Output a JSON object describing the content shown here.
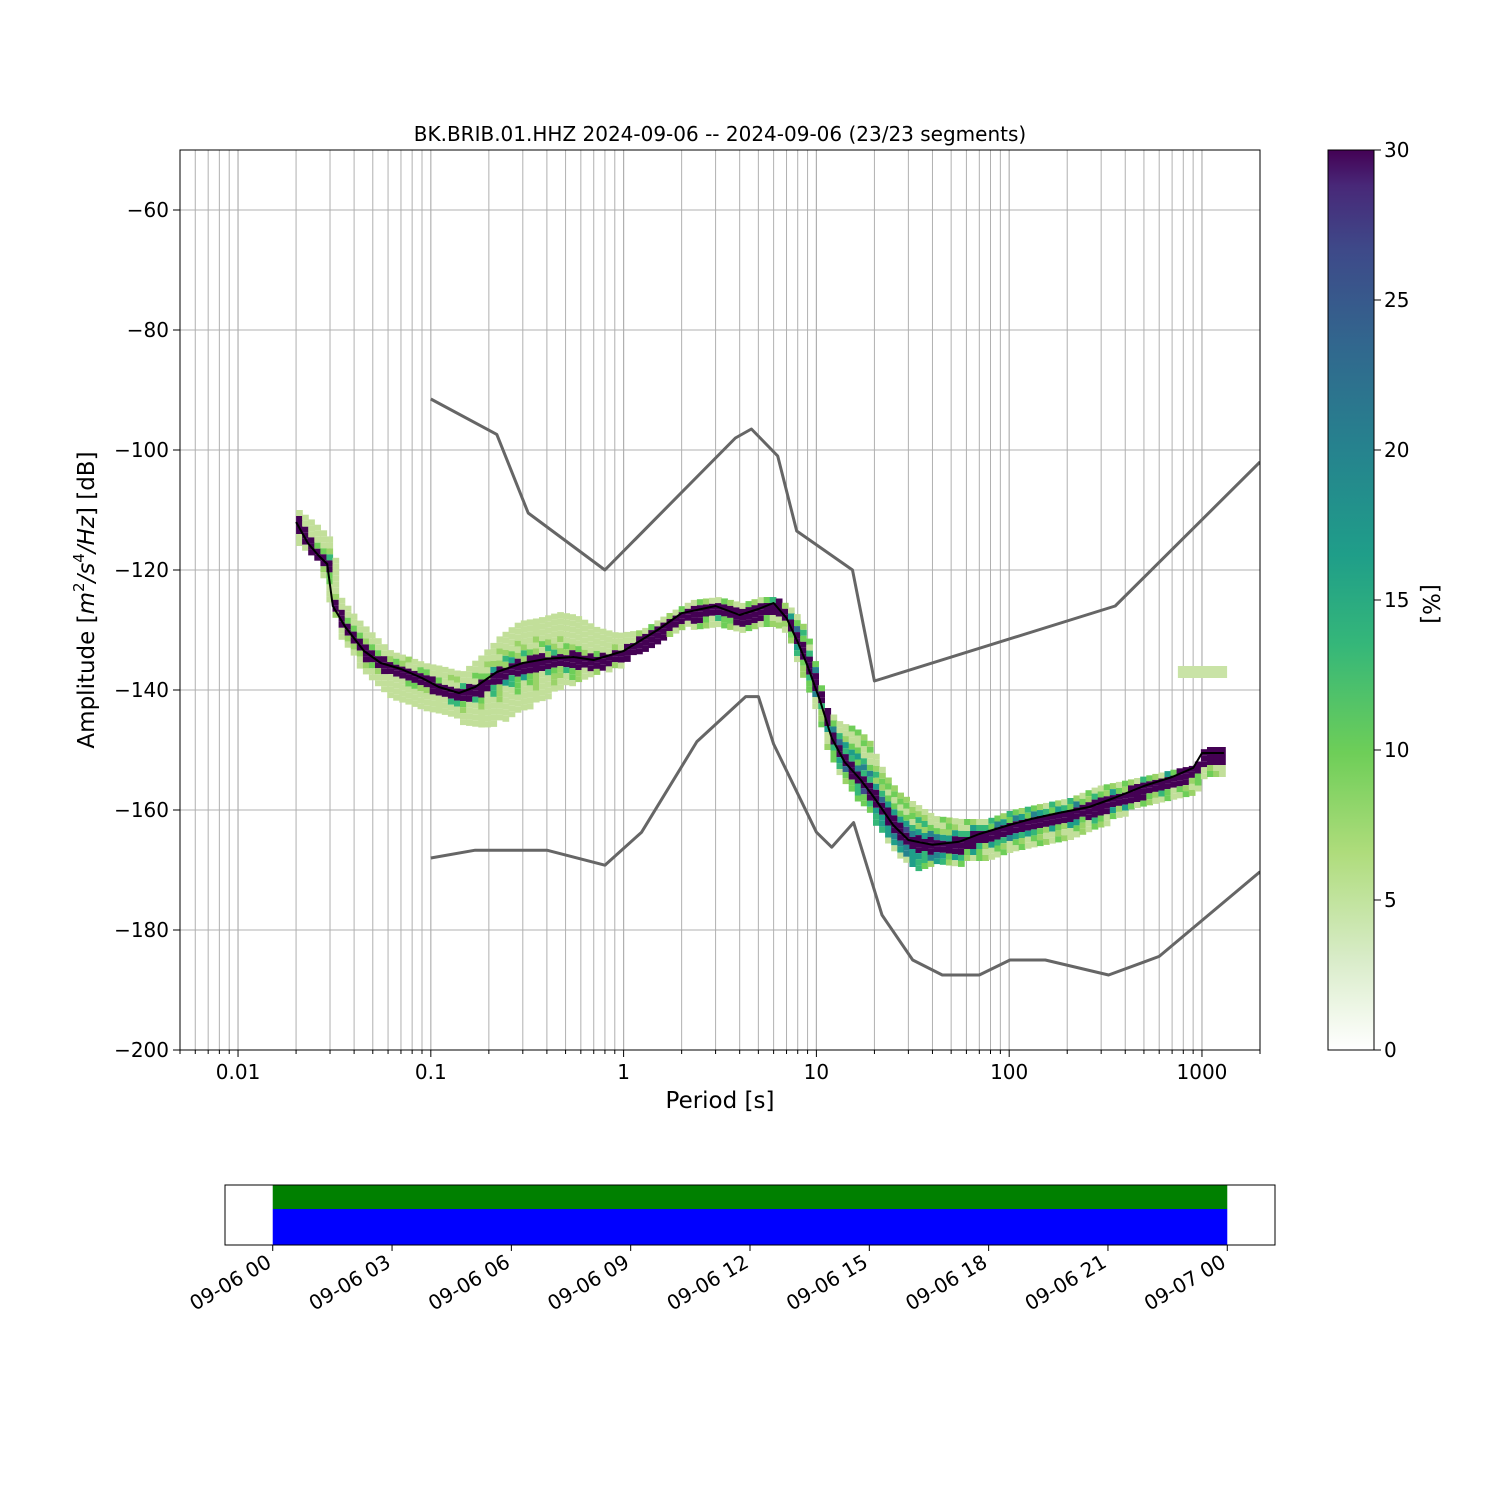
{
  "chart_data": [
    {
      "type": "heatmap",
      "title": "BK.BRIB.01.HHZ   2024-09-06 -- 2024-09-06  (23/23 segments)",
      "xlabel": "Period [s]",
      "ylabel_parts": {
        "prefix": "Amplitude [",
        "m": "m",
        "two": "2",
        "slash": "/",
        "s": "s",
        "four": "4",
        "hz": "/Hz",
        "suffix": "] [dB]"
      },
      "xscale": "log",
      "xlim": [
        0.005,
        2000
      ],
      "ylim": [
        -200,
        -50
      ],
      "x_tick_labels": [
        {
          "value": 0.01,
          "label": "0.01"
        },
        {
          "value": 0.1,
          "label": "0.1"
        },
        {
          "value": 1,
          "label": "1"
        },
        {
          "value": 10,
          "label": "10"
        },
        {
          "value": 100,
          "label": "100"
        },
        {
          "value": 1000,
          "label": "1000"
        }
      ],
      "y_ticks": [
        -60,
        -80,
        -100,
        -120,
        -140,
        -160,
        -180,
        -200
      ],
      "y_tick_labels": [
        "−60",
        "−80",
        "−100",
        "−120",
        "−140",
        "−160",
        "−180",
        "−200"
      ],
      "grid": true,
      "colorbar": {
        "label": "[%]",
        "range": [
          0,
          30
        ],
        "ticks": [
          0,
          5,
          10,
          15,
          20,
          25,
          30
        ],
        "tick_labels": [
          "0",
          "5",
          "10",
          "15",
          "20",
          "25",
          "30"
        ],
        "colormap": "viridis_r"
      },
      "series": [
        {
          "kind": "noise-model",
          "color": "#666666",
          "points": [
            [
              0.1,
              -91.5
            ],
            [
              0.22,
              -97.4
            ],
            [
              0.32,
              -110.5
            ],
            [
              0.8,
              -120
            ],
            [
              3.8,
              -98
            ],
            [
              4.6,
              -96.5
            ],
            [
              6.3,
              -101
            ],
            [
              7.9,
              -113.5
            ],
            [
              15.4,
              -120
            ],
            [
              20,
              -138.5
            ],
            [
              354.8,
              -126
            ],
            [
              2000,
              -102
            ]
          ]
        },
        {
          "kind": "noise-model",
          "color": "#666666",
          "points": [
            [
              0.1,
              -168
            ],
            [
              0.17,
              -166.7
            ],
            [
              0.4,
              -166.7
            ],
            [
              0.8,
              -169.2
            ],
            [
              1.24,
              -163.7
            ],
            [
              2.4,
              -148.6
            ],
            [
              4.3,
              -141.1
            ],
            [
              5.0,
              -141.1
            ],
            [
              6.0,
              -149
            ],
            [
              10.0,
              -163.7
            ],
            [
              12.0,
              -166.2
            ],
            [
              15.6,
              -162.1
            ],
            [
              21.9,
              -177.5
            ],
            [
              31.6,
              -185
            ],
            [
              45,
              -187.5
            ],
            [
              70,
              -187.5
            ],
            [
              101,
              -185
            ],
            [
              154,
              -185
            ],
            [
              328,
              -187.5
            ],
            [
              600,
              -184.4
            ],
            [
              2000,
              -170.3
            ]
          ]
        },
        {
          "kind": "mean",
          "color": "#000000",
          "points": [
            [
              0.02,
              -112
            ],
            [
              0.023,
              -115.5
            ],
            [
              0.026,
              -117.5
            ],
            [
              0.029,
              -119
            ],
            [
              0.031,
              -126
            ],
            [
              0.036,
              -129.5
            ],
            [
              0.045,
              -133.5
            ],
            [
              0.055,
              -135.5
            ],
            [
              0.07,
              -136.5
            ],
            [
              0.09,
              -138
            ],
            [
              0.11,
              -139.5
            ],
            [
              0.14,
              -140.5
            ],
            [
              0.17,
              -139.5
            ],
            [
              0.22,
              -137
            ],
            [
              0.3,
              -135.5
            ],
            [
              0.4,
              -134.8
            ],
            [
              0.55,
              -134.5
            ],
            [
              0.7,
              -135
            ],
            [
              1.0,
              -133.5
            ],
            [
              1.5,
              -130
            ],
            [
              2.0,
              -127.2
            ],
            [
              3.0,
              -126
            ],
            [
              4.0,
              -127.5
            ],
            [
              5.0,
              -126.5
            ],
            [
              6.0,
              -125.5
            ],
            [
              7.0,
              -128
            ],
            [
              8.0,
              -132
            ],
            [
              9.0,
              -136
            ],
            [
              10.5,
              -142
            ],
            [
              12,
              -148
            ],
            [
              14,
              -152
            ],
            [
              17,
              -155
            ],
            [
              20,
              -158
            ],
            [
              25,
              -162.5
            ],
            [
              30,
              -165
            ],
            [
              40,
              -165.8
            ],
            [
              55,
              -165.3
            ],
            [
              70,
              -164
            ],
            [
              100,
              -162.5
            ],
            [
              130,
              -161.5
            ],
            [
              180,
              -160.5
            ],
            [
              260,
              -159.5
            ],
            [
              350,
              -158
            ],
            [
              500,
              -156
            ],
            [
              700,
              -154.5
            ],
            [
              900,
              -153
            ],
            [
              1000,
              -150.5
            ],
            [
              1300,
              -150.5
            ]
          ]
        }
      ],
      "density_band": [
        [
          0.02,
          -110,
          -115
        ],
        [
          0.023,
          -111.5,
          -116.5
        ],
        [
          0.026,
          -113,
          -119.5
        ],
        [
          0.03,
          -115,
          -126.5
        ],
        [
          0.033,
          -124.5,
          -131
        ],
        [
          0.04,
          -128,
          -135
        ],
        [
          0.05,
          -131,
          -138
        ],
        [
          0.06,
          -133.5,
          -140.5
        ],
        [
          0.075,
          -134.5,
          -142
        ],
        [
          0.09,
          -135.5,
          -142.5
        ],
        [
          0.11,
          -136,
          -143.5
        ],
        [
          0.14,
          -137,
          -145
        ],
        [
          0.18,
          -134,
          -145.5
        ],
        [
          0.22,
          -131,
          -145
        ],
        [
          0.28,
          -128.5,
          -143.5
        ],
        [
          0.35,
          -128,
          -141.5
        ],
        [
          0.45,
          -127,
          -139.5
        ],
        [
          0.55,
          -127.5,
          -138
        ],
        [
          0.7,
          -129.5,
          -136.5
        ],
        [
          0.9,
          -130.5,
          -136
        ],
        [
          1.2,
          -130,
          -133
        ],
        [
          1.6,
          -127.5,
          -131
        ],
        [
          2.2,
          -125,
          -129
        ],
        [
          3.0,
          -124.5,
          -128.5
        ],
        [
          4.0,
          -125.5,
          -129.5
        ],
        [
          5.0,
          -124.5,
          -128.5
        ],
        [
          6.0,
          -124.5,
          -128.5
        ],
        [
          7.0,
          -126,
          -131
        ],
        [
          8.0,
          -128,
          -136
        ],
        [
          9.0,
          -132,
          -141
        ],
        [
          10.0,
          -138,
          -145
        ],
        [
          11.0,
          -143,
          -149
        ],
        [
          13,
          -145.5,
          -154
        ],
        [
          15,
          -146,
          -157
        ],
        [
          18,
          -148,
          -160
        ],
        [
          22,
          -154,
          -164
        ],
        [
          26,
          -157,
          -167.5
        ],
        [
          32,
          -159,
          -170
        ],
        [
          40,
          -161,
          -169
        ],
        [
          55,
          -161.5,
          -168.5
        ],
        [
          75,
          -161.5,
          -167.5
        ],
        [
          100,
          -160,
          -166.5
        ],
        [
          140,
          -159,
          -165
        ],
        [
          200,
          -158,
          -164
        ],
        [
          280,
          -156,
          -162.5
        ],
        [
          400,
          -155,
          -160
        ],
        [
          550,
          -154,
          -158.5
        ],
        [
          750,
          -153,
          -157.5
        ],
        [
          900,
          -152.5,
          -156.5
        ],
        [
          1000,
          -149.5,
          -154
        ],
        [
          1300,
          -149.5,
          -154
        ]
      ],
      "outlier_patch": {
        "period_range": [
          750,
          1350
        ],
        "db_range": [
          -136,
          -138
        ],
        "percent": 5
      }
    },
    {
      "type": "timeline",
      "x_tick_labels": [
        "09-06 00",
        "09-06 03",
        "09-06 06",
        "09-06 09",
        "09-06 12",
        "09-06 15",
        "09-06 18",
        "09-06 21",
        "09-07 00"
      ],
      "xlim_hours": [
        -1.2,
        25.2
      ],
      "bars": [
        {
          "color": "#008000",
          "start_hour": 0,
          "end_hour": 24
        },
        {
          "color": "#0000ff",
          "start_hour": 0,
          "end_hour": 24
        }
      ]
    }
  ]
}
